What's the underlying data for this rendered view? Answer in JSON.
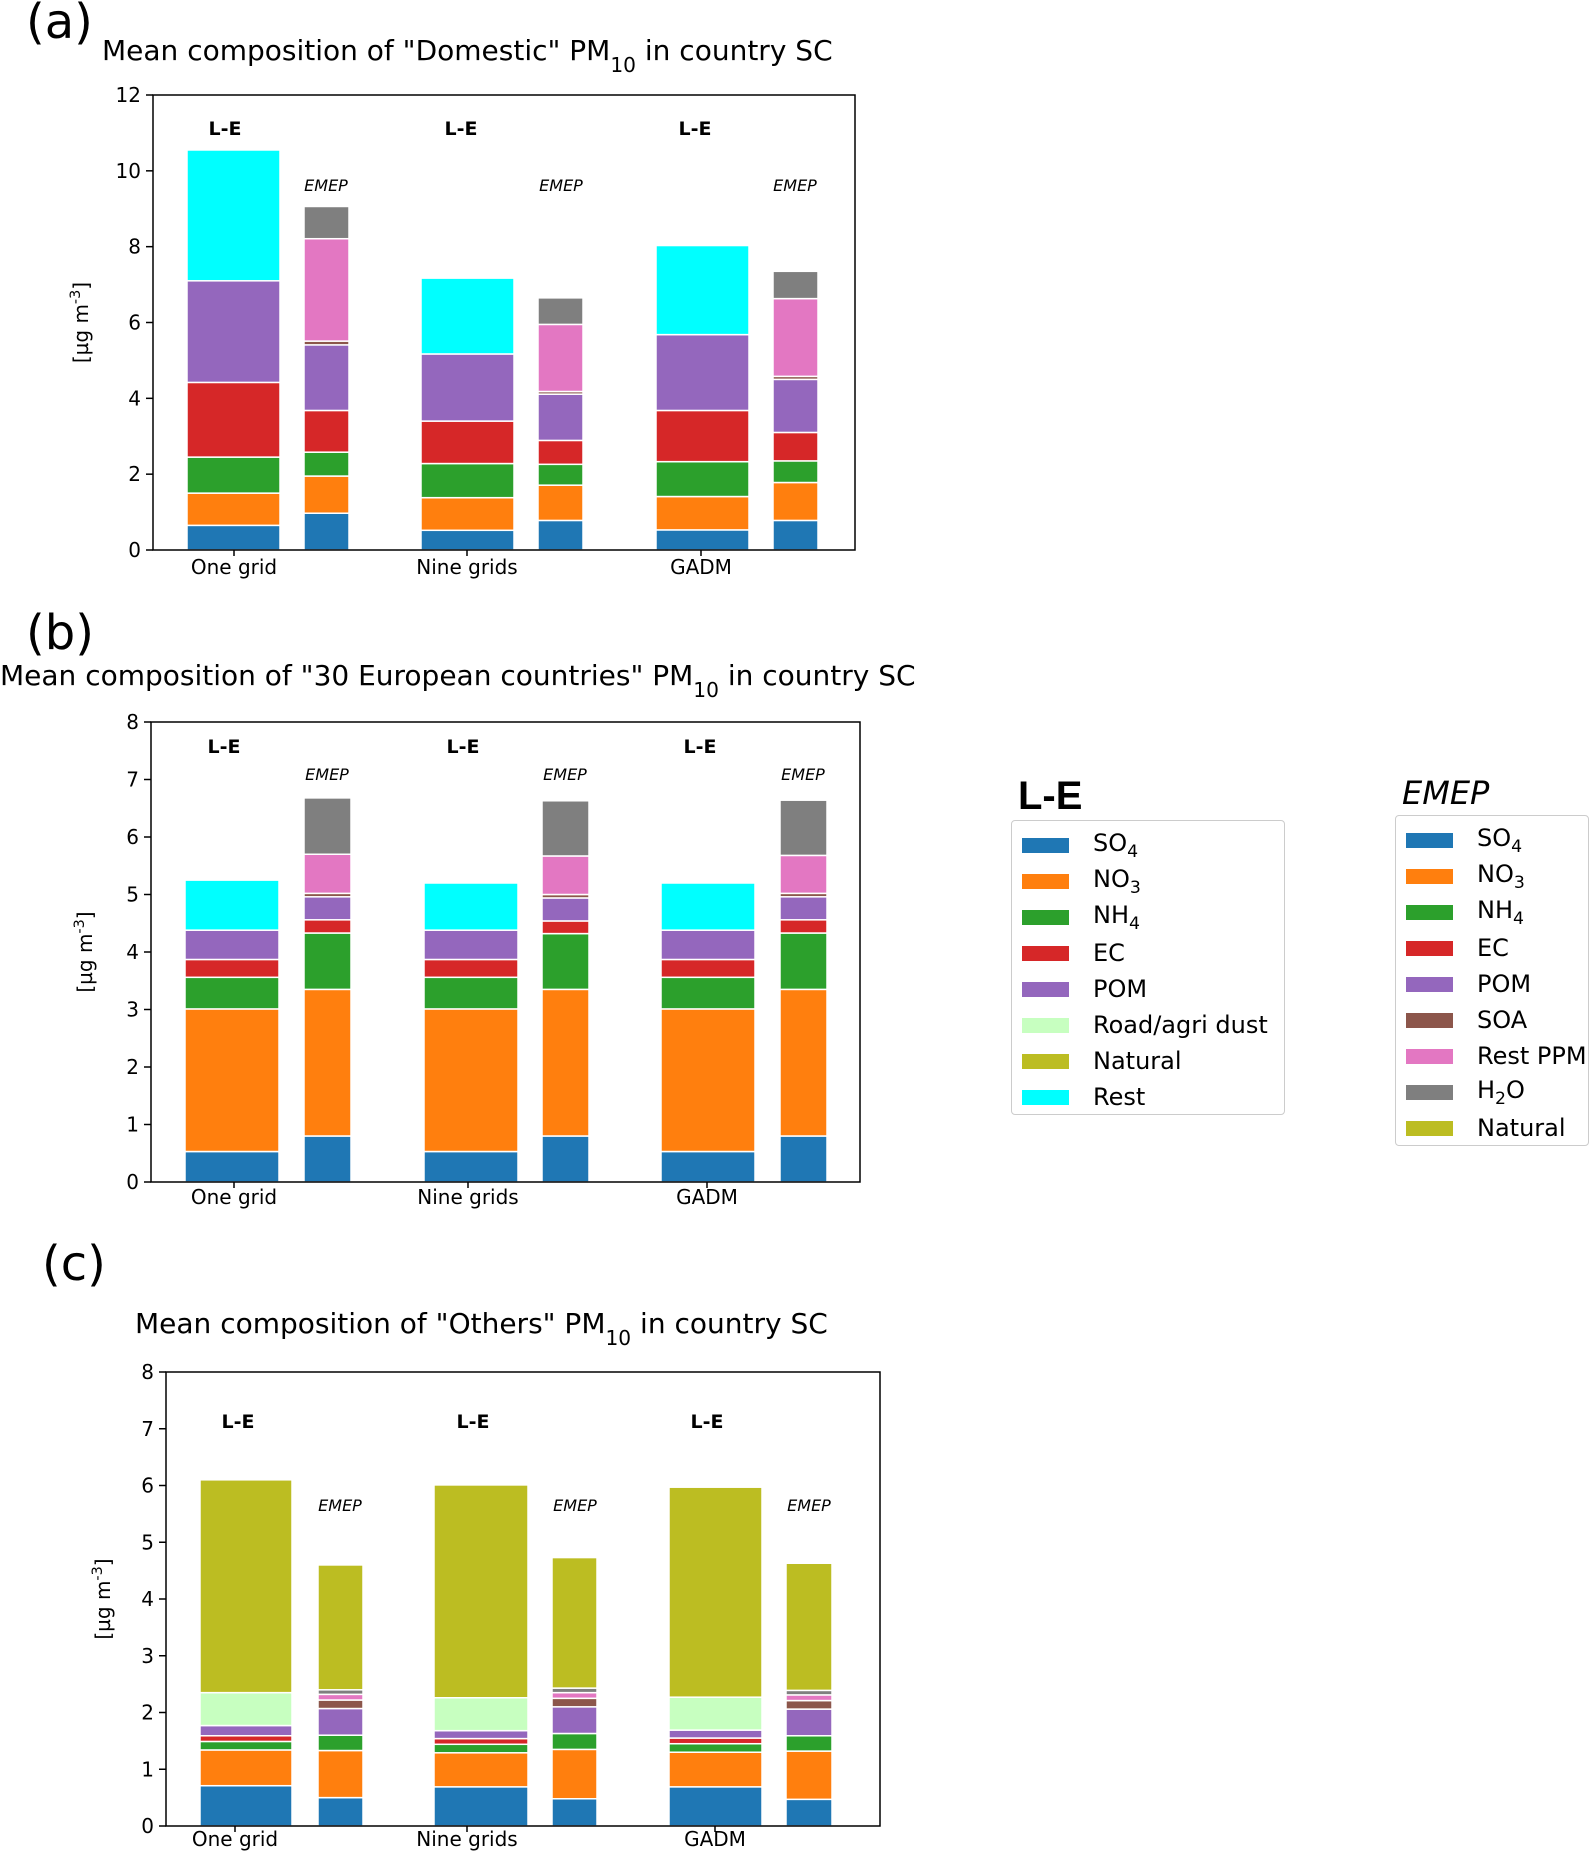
{
  "panels": [
    {
      "letter": "(a)"
    },
    {
      "letter": "(b)"
    },
    {
      "letter": "(c)"
    }
  ],
  "colors": {
    "SO4": "#1f77b4",
    "NO3": "#ff7f0e",
    "NH4": "#2ca02c",
    "EC": "#d62728",
    "POM": "#9467bd",
    "SOA": "#8c564b",
    "RestPPM": "#e377c2",
    "H2O": "#7f7f7f",
    "Natural": "#bcbd22",
    "RoadDust": "#c7ffc0",
    "Rest": "#00ffff"
  },
  "chart_data": [
    {
      "type": "bar",
      "stacked": true,
      "title": "Mean composition of \"Domestic\" PM10 in country SC",
      "ylabel": "[µg m-3]",
      "ylim": [
        0,
        12
      ],
      "yticks": [
        0,
        2,
        4,
        6,
        8,
        10,
        12
      ],
      "categories": [
        "One grid",
        "Nine grids",
        "GADM"
      ],
      "bar_labels": {
        "le": "L-E",
        "emep": "EMEP"
      },
      "le_components": [
        "SO4",
        "NO3",
        "NH4",
        "EC",
        "POM",
        "RoadDust",
        "Natural",
        "Rest"
      ],
      "emep_components": [
        "SO4",
        "NO3",
        "NH4",
        "EC",
        "POM",
        "SOA",
        "RestPPM",
        "H2O",
        "Natural"
      ],
      "le": [
        [
          0.65,
          0.85,
          0.95,
          1.97,
          2.68,
          0.0,
          0.0,
          3.45
        ],
        [
          0.52,
          0.86,
          0.9,
          1.12,
          1.77,
          0.0,
          0.0,
          2.0
        ],
        [
          0.53,
          0.88,
          0.92,
          1.35,
          2.0,
          0.0,
          0.0,
          2.35
        ]
      ],
      "emep": [
        [
          0.97,
          0.98,
          0.63,
          1.1,
          1.73,
          0.1,
          2.7,
          0.85,
          0.0
        ],
        [
          0.78,
          0.93,
          0.55,
          0.63,
          1.22,
          0.07,
          1.77,
          0.7,
          0.0
        ],
        [
          0.78,
          1.0,
          0.57,
          0.75,
          1.4,
          0.08,
          2.05,
          0.72,
          0.0
        ]
      ]
    },
    {
      "type": "bar",
      "stacked": true,
      "title": "Mean composition of \"30 European countries\" PM10 in country SC",
      "ylabel": "[µg m-3]",
      "ylim": [
        0,
        8
      ],
      "yticks": [
        0,
        1,
        2,
        3,
        4,
        5,
        6,
        7,
        8
      ],
      "categories": [
        "One grid",
        "Nine grids",
        "GADM"
      ],
      "bar_labels": {
        "le": "L-E",
        "emep": "EMEP"
      },
      "le_components": [
        "SO4",
        "NO3",
        "NH4",
        "EC",
        "POM",
        "RoadDust",
        "Natural",
        "Rest"
      ],
      "emep_components": [
        "SO4",
        "NO3",
        "NH4",
        "EC",
        "POM",
        "SOA",
        "RestPPM",
        "H2O",
        "Natural"
      ],
      "le": [
        [
          0.53,
          2.48,
          0.55,
          0.31,
          0.51,
          0.0,
          0.0,
          0.87
        ],
        [
          0.53,
          2.48,
          0.55,
          0.31,
          0.51,
          0.0,
          0.0,
          0.82
        ],
        [
          0.53,
          2.48,
          0.55,
          0.31,
          0.51,
          0.0,
          0.0,
          0.82
        ]
      ],
      "emep": [
        [
          0.8,
          2.55,
          0.98,
          0.23,
          0.4,
          0.06,
          0.68,
          0.98,
          0.0
        ],
        [
          0.8,
          2.55,
          0.97,
          0.22,
          0.4,
          0.06,
          0.67,
          0.96,
          0.0
        ],
        [
          0.8,
          2.55,
          0.98,
          0.23,
          0.4,
          0.06,
          0.66,
          0.96,
          0.0
        ]
      ]
    },
    {
      "type": "bar",
      "stacked": true,
      "title": "Mean composition of \"Others\" PM10 in country SC",
      "ylabel": "[µg m-3]",
      "ylim": [
        0,
        8
      ],
      "yticks": [
        0,
        1,
        2,
        3,
        4,
        5,
        6,
        7,
        8
      ],
      "categories": [
        "One grid",
        "Nine grids",
        "GADM"
      ],
      "bar_labels": {
        "le": "L-E",
        "emep": "EMEP"
      },
      "le_components": [
        "SO4",
        "NO3",
        "NH4",
        "EC",
        "POM",
        "RoadDust",
        "Natural",
        "Rest"
      ],
      "emep_components": [
        "SO4",
        "NO3",
        "NH4",
        "EC",
        "POM",
        "SOA",
        "RestPPM",
        "H2O",
        "Natural"
      ],
      "le": [
        [
          0.71,
          0.63,
          0.15,
          0.1,
          0.18,
          0.58,
          3.75,
          0.0
        ],
        [
          0.69,
          0.6,
          0.15,
          0.1,
          0.14,
          0.58,
          3.75,
          0.0
        ],
        [
          0.69,
          0.61,
          0.15,
          0.1,
          0.14,
          0.58,
          3.7,
          0.0
        ]
      ],
      "emep": [
        [
          0.5,
          0.83,
          0.27,
          0.0,
          0.47,
          0.15,
          0.1,
          0.08,
          2.2
        ],
        [
          0.48,
          0.87,
          0.28,
          0.0,
          0.47,
          0.15,
          0.1,
          0.08,
          2.3
        ],
        [
          0.47,
          0.85,
          0.27,
          0.0,
          0.47,
          0.15,
          0.1,
          0.08,
          2.24
        ]
      ]
    }
  ],
  "legend_le": {
    "title": "L-E",
    "items": [
      {
        "label": "SO4",
        "color_key": "SO4"
      },
      {
        "label": "NO3",
        "color_key": "NO3"
      },
      {
        "label": "NH4",
        "color_key": "NH4"
      },
      {
        "label": "EC",
        "color_key": "EC"
      },
      {
        "label": "POM",
        "color_key": "POM"
      },
      {
        "label": "Road/agri dust",
        "color_key": "RoadDust"
      },
      {
        "label": "Natural",
        "color_key": "Natural"
      },
      {
        "label": "Rest",
        "color_key": "Rest"
      }
    ]
  },
  "legend_emep": {
    "title": "EMEP",
    "items": [
      {
        "label": "SO4",
        "color_key": "SO4"
      },
      {
        "label": "NO3",
        "color_key": "NO3"
      },
      {
        "label": "NH4",
        "color_key": "NH4"
      },
      {
        "label": "EC",
        "color_key": "EC"
      },
      {
        "label": "POM",
        "color_key": "POM"
      },
      {
        "label": "SOA",
        "color_key": "SOA"
      },
      {
        "label": "Rest PPM",
        "color_key": "RestPPM"
      },
      {
        "label": "H2O",
        "color_key": "H2O"
      },
      {
        "label": "Natural",
        "color_key": "Natural"
      }
    ]
  }
}
